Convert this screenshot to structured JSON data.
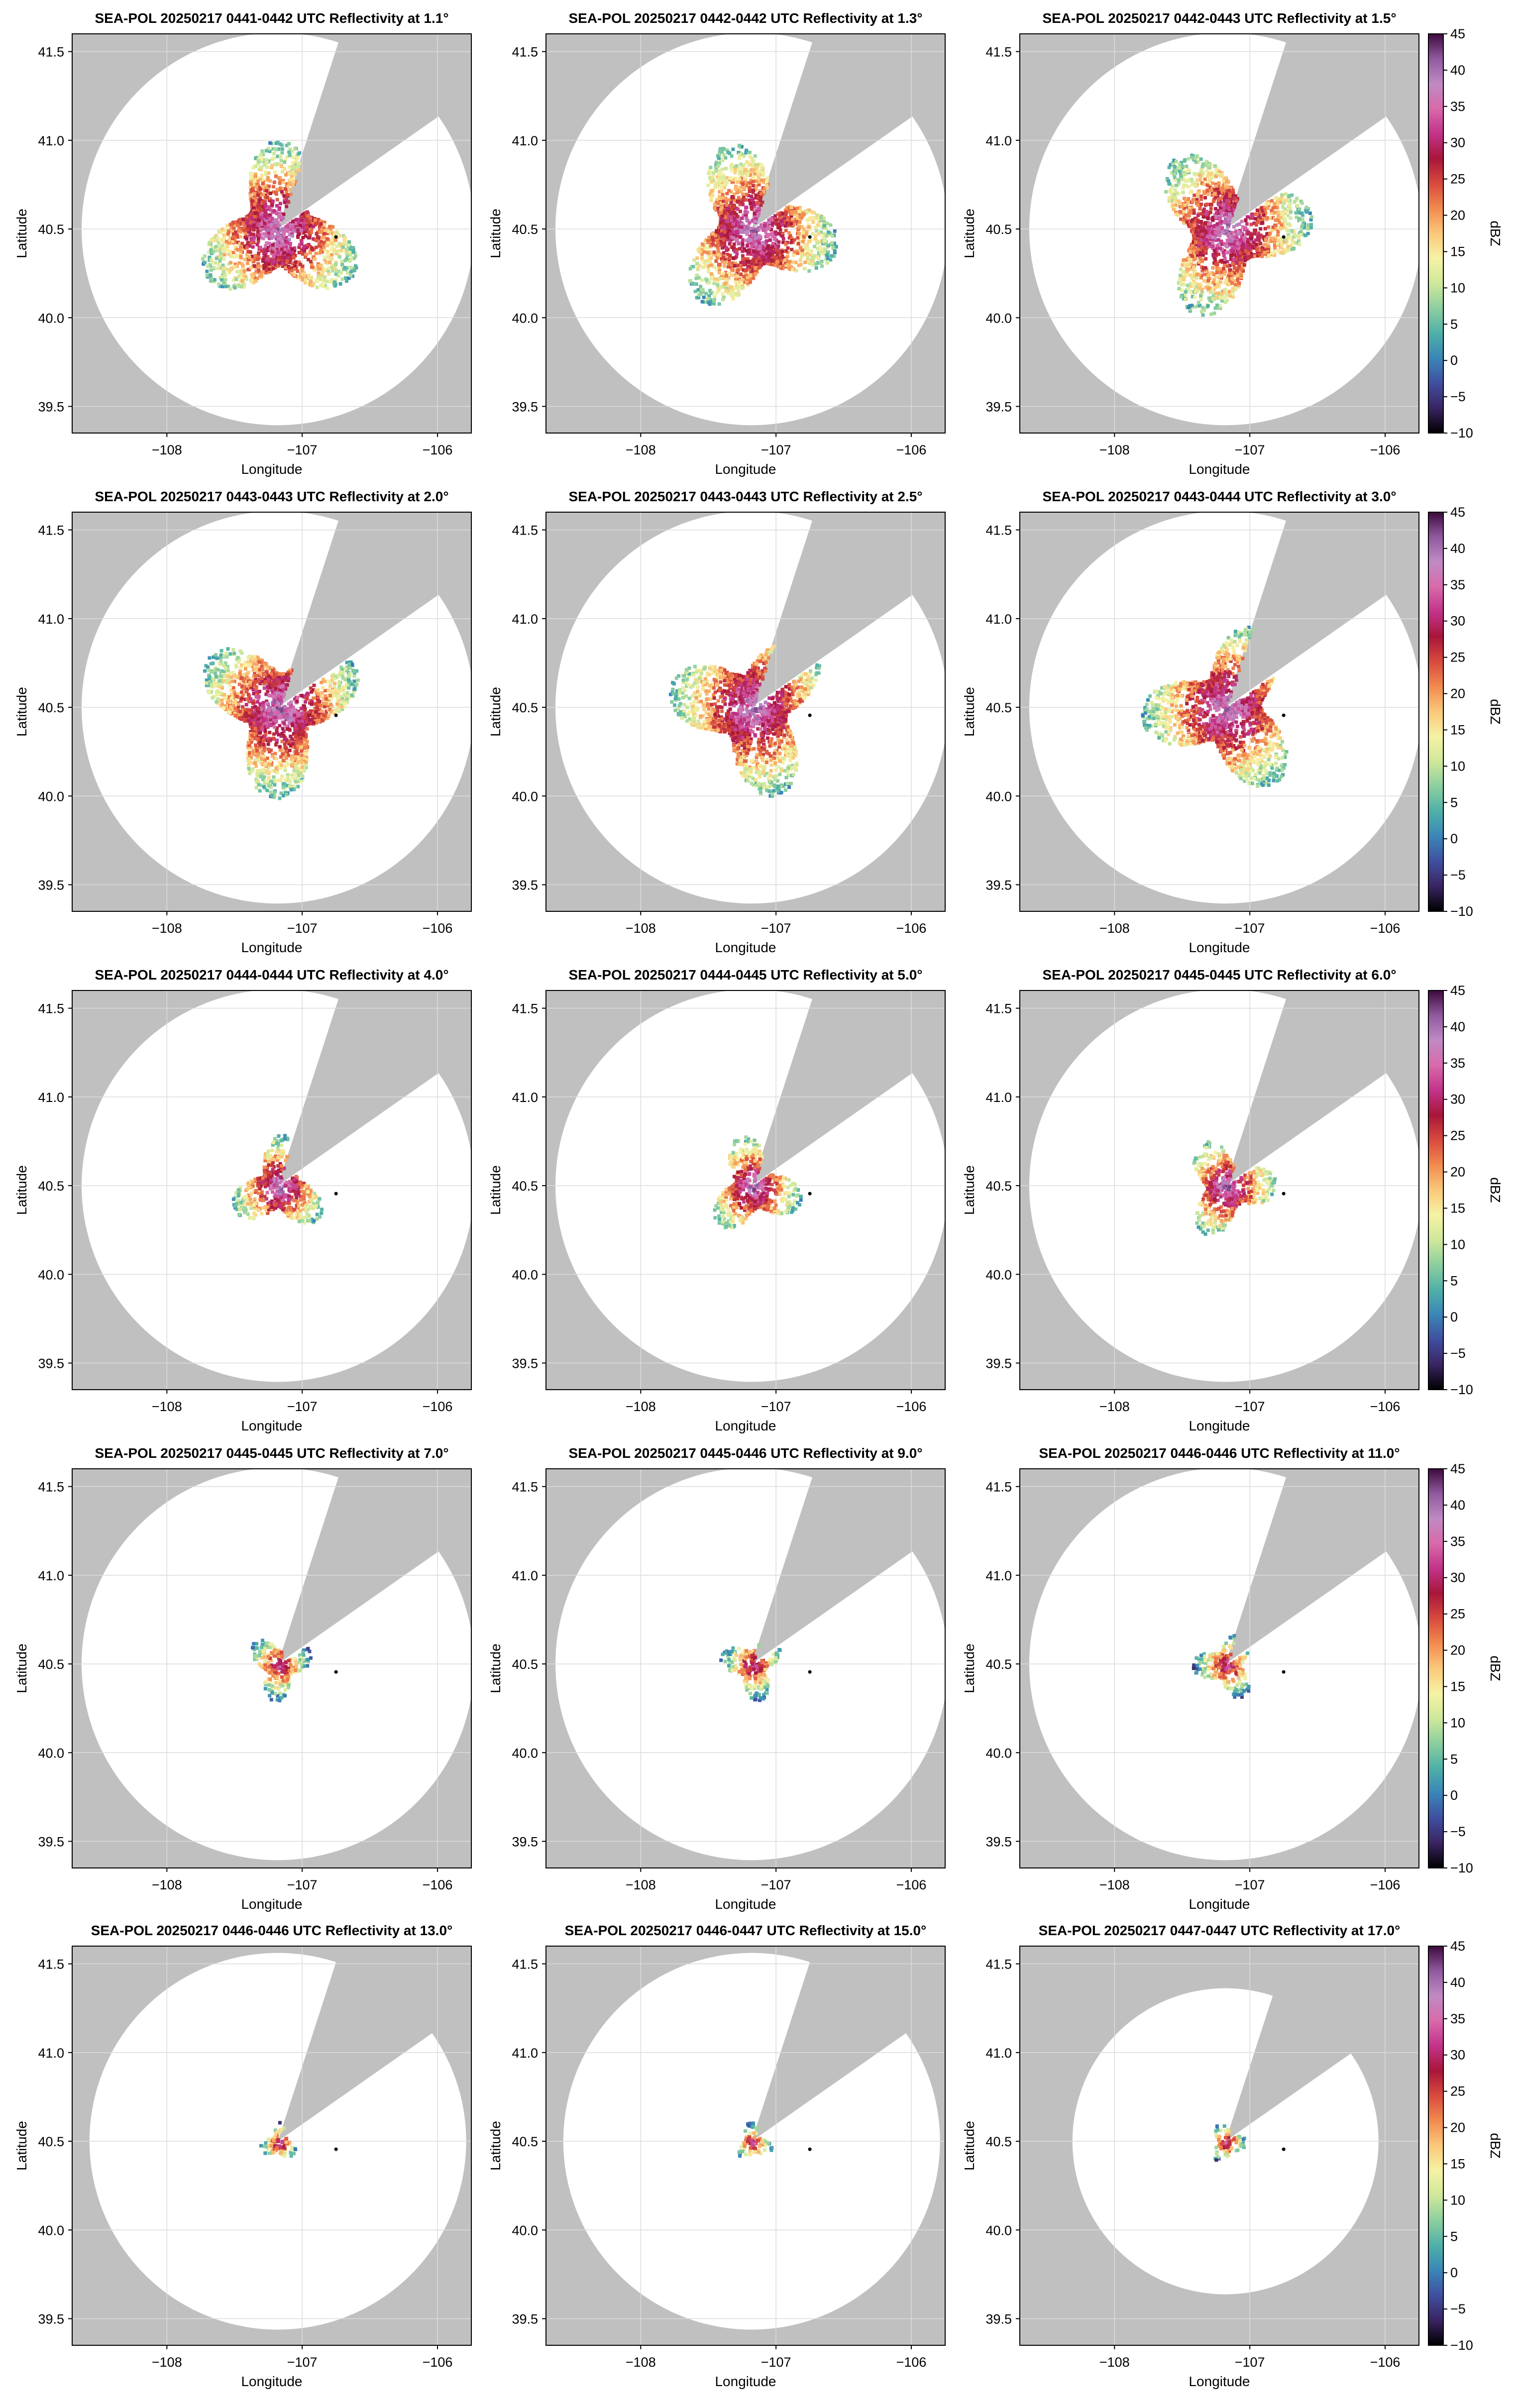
{
  "figure": {
    "x_axis_label": "Longitude",
    "y_axis_label": "Latitude",
    "colorbar_label": "dBZ",
    "colorbar_ticks": [
      45,
      40,
      35,
      30,
      25,
      20,
      15,
      10,
      5,
      0,
      -5,
      -10
    ],
    "colorbar_tick_labels": [
      "45",
      "40",
      "35",
      "30",
      "25",
      "20",
      "15",
      "10",
      "5",
      "0",
      "−5",
      "−10"
    ],
    "x_ticks": [
      -108,
      -107,
      -106
    ],
    "x_tick_labels": [
      "−108",
      "−107",
      "−106"
    ],
    "y_ticks": [
      41.5,
      41.0,
      40.5,
      40.0,
      39.5
    ],
    "y_tick_labels": [
      "41.5",
      "41.0",
      "40.5",
      "40.0",
      "39.5"
    ]
  },
  "chart_data": [
    {
      "type": "heatmap",
      "title": "SEA-POL 20250217 0441-0442 UTC Reflectivity at 1.1°",
      "elevation_deg": 1.1,
      "xlabel": "Longitude",
      "ylabel": "Latitude",
      "xlim": [
        -108.7,
        -105.75
      ],
      "ylim": [
        39.35,
        41.6
      ],
      "echo_extent": "large"
    },
    {
      "type": "heatmap",
      "title": "SEA-POL 20250217 0442-0442 UTC Reflectivity at 1.3°",
      "elevation_deg": 1.3,
      "xlabel": "Longitude",
      "ylabel": "Latitude",
      "xlim": [
        -108.7,
        -105.75
      ],
      "ylim": [
        39.35,
        41.6
      ],
      "echo_extent": "large"
    },
    {
      "type": "heatmap",
      "title": "SEA-POL 20250217 0442-0443 UTC Reflectivity at 1.5°",
      "elevation_deg": 1.5,
      "xlabel": "Longitude",
      "ylabel": "Latitude",
      "xlim": [
        -108.7,
        -105.75
      ],
      "ylim": [
        39.35,
        41.6
      ],
      "echo_extent": "large"
    },
    {
      "type": "heatmap",
      "title": "SEA-POL 20250217 0443-0443 UTC Reflectivity at 2.0°",
      "elevation_deg": 2.0,
      "xlabel": "Longitude",
      "ylabel": "Latitude",
      "xlim": [
        -108.7,
        -105.75
      ],
      "ylim": [
        39.35,
        41.6
      ],
      "echo_extent": "large"
    },
    {
      "type": "heatmap",
      "title": "SEA-POL 20250217 0443-0443 UTC Reflectivity at 2.5°",
      "elevation_deg": 2.5,
      "xlabel": "Longitude",
      "ylabel": "Latitude",
      "xlim": [
        -108.7,
        -105.75
      ],
      "ylim": [
        39.35,
        41.6
      ],
      "echo_extent": "large"
    },
    {
      "type": "heatmap",
      "title": "SEA-POL 20250217 0443-0444 UTC Reflectivity at 3.0°",
      "elevation_deg": 3.0,
      "xlabel": "Longitude",
      "ylabel": "Latitude",
      "xlim": [
        -108.7,
        -105.75
      ],
      "ylim": [
        39.35,
        41.6
      ],
      "echo_extent": "large"
    },
    {
      "type": "heatmap",
      "title": "SEA-POL 20250217 0444-0444 UTC Reflectivity at 4.0°",
      "elevation_deg": 4.0,
      "xlabel": "Longitude",
      "ylabel": "Latitude",
      "xlim": [
        -108.7,
        -105.75
      ],
      "ylim": [
        39.35,
        41.6
      ],
      "echo_extent": "medium"
    },
    {
      "type": "heatmap",
      "title": "SEA-POL 20250217 0444-0445 UTC Reflectivity at 5.0°",
      "elevation_deg": 5.0,
      "xlabel": "Longitude",
      "ylabel": "Latitude",
      "xlim": [
        -108.7,
        -105.75
      ],
      "ylim": [
        39.35,
        41.6
      ],
      "echo_extent": "medium"
    },
    {
      "type": "heatmap",
      "title": "SEA-POL 20250217 0445-0445 UTC Reflectivity at 6.0°",
      "elevation_deg": 6.0,
      "xlabel": "Longitude",
      "ylabel": "Latitude",
      "xlim": [
        -108.7,
        -105.75
      ],
      "ylim": [
        39.35,
        41.6
      ],
      "echo_extent": "medium"
    },
    {
      "type": "heatmap",
      "title": "SEA-POL 20250217 0445-0445 UTC Reflectivity at 7.0°",
      "elevation_deg": 7.0,
      "xlabel": "Longitude",
      "ylabel": "Latitude",
      "xlim": [
        -108.7,
        -105.75
      ],
      "ylim": [
        39.35,
        41.6
      ],
      "echo_extent": "small"
    },
    {
      "type": "heatmap",
      "title": "SEA-POL 20250217 0445-0446 UTC Reflectivity at 9.0°",
      "elevation_deg": 9.0,
      "xlabel": "Longitude",
      "ylabel": "Latitude",
      "xlim": [
        -108.7,
        -105.75
      ],
      "ylim": [
        39.35,
        41.6
      ],
      "echo_extent": "small"
    },
    {
      "type": "heatmap",
      "title": "SEA-POL 20250217 0446-0446 UTC Reflectivity at 11.0°",
      "elevation_deg": 11.0,
      "xlabel": "Longitude",
      "ylabel": "Latitude",
      "xlim": [
        -108.7,
        -105.75
      ],
      "ylim": [
        39.35,
        41.6
      ],
      "echo_extent": "small"
    },
    {
      "type": "heatmap",
      "title": "SEA-POL 20250217 0446-0446 UTC Reflectivity at 13.0°",
      "elevation_deg": 13.0,
      "xlabel": "Longitude",
      "ylabel": "Latitude",
      "xlim": [
        -108.7,
        -105.75
      ],
      "ylim": [
        39.35,
        41.6
      ],
      "echo_extent": "tiny"
    },
    {
      "type": "heatmap",
      "title": "SEA-POL 20250217 0446-0447 UTC Reflectivity at 15.0°",
      "elevation_deg": 15.0,
      "xlabel": "Longitude",
      "ylabel": "Latitude",
      "xlim": [
        -108.7,
        -105.75
      ],
      "ylim": [
        39.35,
        41.6
      ],
      "echo_extent": "tiny"
    },
    {
      "type": "heatmap",
      "title": "SEA-POL 20250217 0447-0447 UTC Reflectivity at 17.0°",
      "elevation_deg": 17.0,
      "xlabel": "Longitude",
      "ylabel": "Latitude",
      "xlim": [
        -108.7,
        -105.75
      ],
      "ylim": [
        39.35,
        41.6
      ],
      "echo_extent": "tiny"
    }
  ],
  "colormap": {
    "name": "dbz-scale",
    "vmin": -10,
    "vmax": 45,
    "stops": [
      "#000000",
      "#3a2463",
      "#3f4fa0",
      "#3a86b8",
      "#4fb0a8",
      "#8ccf9f",
      "#cfe89a",
      "#f6f2a4",
      "#fbc87a",
      "#f28a4f",
      "#d84a3e",
      "#a8163a",
      "#c2338a",
      "#d86aaa",
      "#c08ac4",
      "#8e5a9e",
      "#3d0a3d"
    ]
  },
  "colors": {
    "masked_background": "#c0c0c0",
    "coverage": "#ffffff",
    "gridline": "#dcdcdc",
    "radar_site_marker": "#000000"
  }
}
